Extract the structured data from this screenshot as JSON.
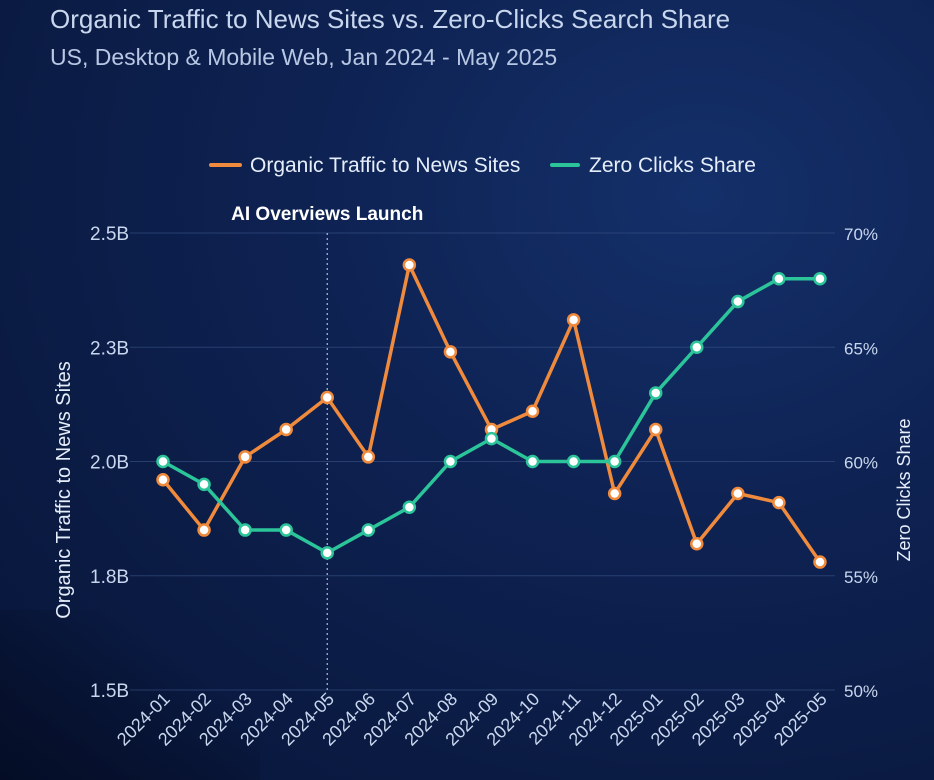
{
  "header": {
    "title": "Organic Traffic to News Sites vs. Zero-Clicks Search Share",
    "subtitle": "US, Desktop & Mobile Web, Jan 2024 - May 2025"
  },
  "chart_data": {
    "type": "line",
    "categories": [
      "2024-01",
      "2024-02",
      "2024-03",
      "2024-04",
      "2024-05",
      "2024-06",
      "2024-07",
      "2024-08",
      "2024-09",
      "2024-10",
      "2024-11",
      "2024-12",
      "2025-01",
      "2025-02",
      "2025-03",
      "2025-04",
      "2025-05"
    ],
    "series": [
      {
        "name": "Organic Traffic to News Sites",
        "axis": "left",
        "color": "#f08a3c",
        "values": [
          1.96,
          1.85,
          2.01,
          2.07,
          2.14,
          2.01,
          2.43,
          2.24,
          2.07,
          2.11,
          2.31,
          1.93,
          2.07,
          1.82,
          1.93,
          1.91,
          1.78
        ]
      },
      {
        "name": "Zero Clicks Share",
        "axis": "right",
        "color": "#2cc59a",
        "values": [
          60,
          59,
          57,
          57,
          56,
          57,
          58,
          60,
          61,
          60,
          60,
          60,
          63,
          65,
          67,
          68,
          68
        ]
      }
    ],
    "y_left": {
      "label": "Organic Traffic to News Sites",
      "ticks": [
        1.5,
        1.75,
        2.0,
        2.25,
        2.5
      ],
      "tick_labels": [
        "1.5B",
        "1.8B",
        "2.0B",
        "2.3B",
        "2.5B"
      ],
      "range": [
        1.5,
        2.5
      ]
    },
    "y_right": {
      "label": "Zero Clicks Share",
      "ticks": [
        50,
        55,
        60,
        65,
        70
      ],
      "tick_labels": [
        "50%",
        "55%",
        "60%",
        "65%",
        "70%"
      ],
      "range": [
        50,
        70
      ]
    },
    "annotation": {
      "text": "AI Overviews Launch",
      "at": "2024-05"
    },
    "legend": "top-center",
    "grid": "horizontal"
  }
}
